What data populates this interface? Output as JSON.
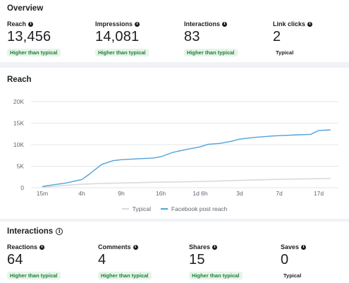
{
  "overview": {
    "title": "Overview",
    "metrics": [
      {
        "label": "Reach",
        "value": "13,456",
        "badge": "Higher than typical",
        "status": "higher"
      },
      {
        "label": "Impressions",
        "value": "14,081",
        "badge": "Higher than typical",
        "status": "higher"
      },
      {
        "label": "Interactions",
        "value": "83",
        "badge": "Higher than typical",
        "status": "higher"
      },
      {
        "label": "Link clicks",
        "value": "2",
        "badge": "Typical",
        "status": "typical"
      }
    ]
  },
  "reach_section": {
    "title": "Reach",
    "legend": [
      {
        "label": "Typical",
        "color": "#d8dadf"
      },
      {
        "label": "Facebook post reach",
        "color": "#4fa3d9"
      }
    ]
  },
  "chart_data": {
    "type": "line",
    "x_tick_labels": [
      "15m",
      "4h",
      "9h",
      "16h",
      "1d 6h",
      "3d",
      "7d",
      "17d"
    ],
    "y_tick_labels": [
      "0",
      "5K",
      "10K",
      "15K",
      "20K"
    ],
    "ylim": [
      0,
      20000
    ],
    "grid": true,
    "legend_position": "bottom",
    "series": [
      {
        "name": "Facebook post reach",
        "color": "#4fa3d9",
        "points": [
          [
            0,
            300
          ],
          [
            0.3,
            700
          ],
          [
            0.6,
            1100
          ],
          [
            1,
            1900
          ],
          [
            1.2,
            3200
          ],
          [
            1.5,
            5400
          ],
          [
            1.8,
            6300
          ],
          [
            2,
            6500
          ],
          [
            2.4,
            6700
          ],
          [
            2.8,
            6900
          ],
          [
            3,
            7200
          ],
          [
            3.3,
            8200
          ],
          [
            3.6,
            8800
          ],
          [
            4,
            9500
          ],
          [
            4.2,
            10100
          ],
          [
            4.5,
            10300
          ],
          [
            4.8,
            10800
          ],
          [
            5,
            11300
          ],
          [
            5.4,
            11700
          ],
          [
            5.8,
            12000
          ],
          [
            6,
            12100
          ],
          [
            6.5,
            12300
          ],
          [
            6.8,
            12400
          ],
          [
            7,
            13300
          ],
          [
            7.3,
            13450
          ]
        ]
      },
      {
        "name": "Typical",
        "color": "#d8dadf",
        "points": [
          [
            0,
            100
          ],
          [
            0.5,
            500
          ],
          [
            1,
            800
          ],
          [
            1.5,
            1000
          ],
          [
            2,
            1100
          ],
          [
            3,
            1300
          ],
          [
            4,
            1450
          ],
          [
            5,
            1700
          ],
          [
            6,
            1950
          ],
          [
            7,
            2100
          ],
          [
            7.3,
            2150
          ]
        ]
      }
    ]
  },
  "interactions_section": {
    "title": "Interactions",
    "metrics": [
      {
        "label": "Reactions",
        "value": "64",
        "badge": "Higher than typical",
        "status": "higher"
      },
      {
        "label": "Comments",
        "value": "4",
        "badge": "Higher than typical",
        "status": "higher"
      },
      {
        "label": "Shares",
        "value": "15",
        "badge": "Higher than typical",
        "status": "higher"
      },
      {
        "label": "Saves",
        "value": "0",
        "badge": "Typical",
        "status": "typical"
      }
    ]
  },
  "icons": {
    "info": "info-icon",
    "info_outline": "info-outline-icon"
  }
}
